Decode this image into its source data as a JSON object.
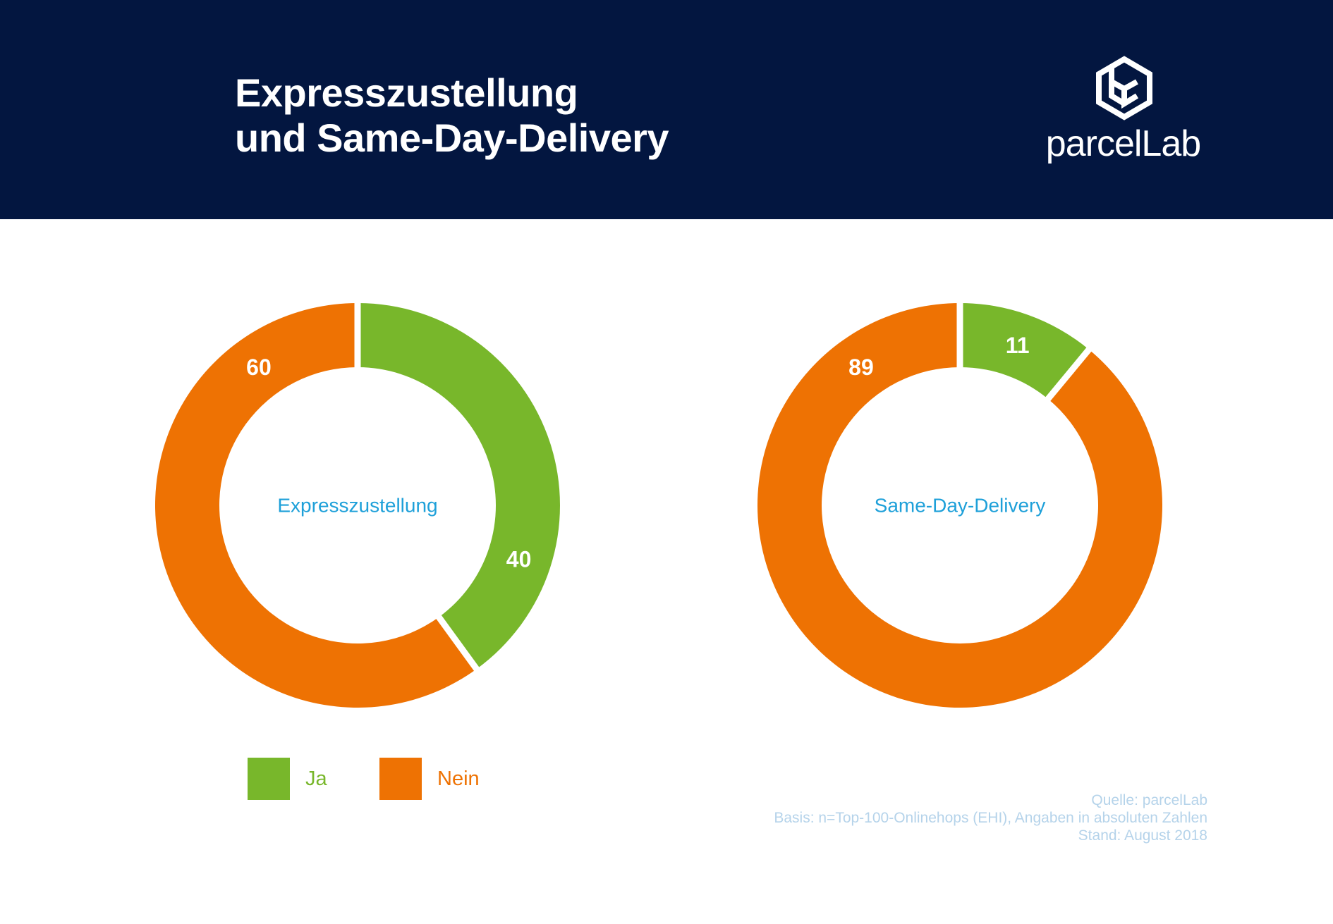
{
  "header": {
    "title_line1": "Expresszustellung",
    "title_line2": "und Same-Day-Delivery",
    "logo_text": "parcelLab",
    "logo_icon": "parcellab-cube-icon"
  },
  "colors": {
    "header_bg": "#031640",
    "ja": "#78b72b",
    "nein": "#ee7203",
    "center_label": "#1ea0d9",
    "source_text": "#b5d3ea"
  },
  "chart_data": [
    {
      "type": "pie",
      "style": "donut",
      "center_label": "Expresszustellung",
      "categories": [
        "Ja",
        "Nein"
      ],
      "values": [
        40,
        60
      ],
      "data_labels": [
        "40",
        "60"
      ]
    },
    {
      "type": "pie",
      "style": "donut",
      "center_label": "Same-Day-Delivery",
      "categories": [
        "Ja",
        "Nein"
      ],
      "values": [
        11,
        89
      ],
      "data_labels": [
        "11",
        "89"
      ]
    }
  ],
  "legend": [
    {
      "label": "Ja",
      "color": "#78b72b"
    },
    {
      "label": "Nein",
      "color": "#ee7203"
    }
  ],
  "source": {
    "line1": "Quelle: parcelLab",
    "line2": "Basis: n=Top-100-Onlinehops (EHI), Angaben in absoluten Zahlen",
    "line3": "Stand: August 2018"
  }
}
